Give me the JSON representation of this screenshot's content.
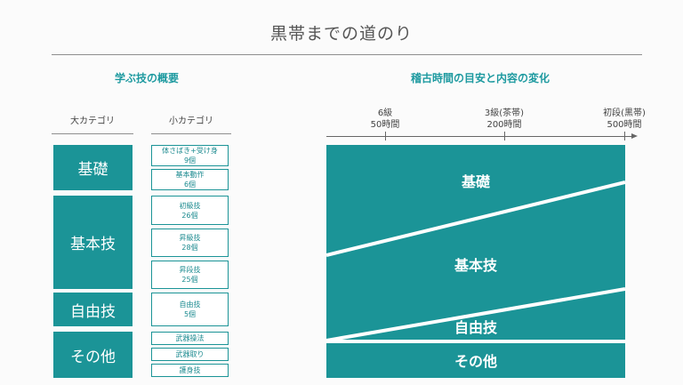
{
  "title": "黒帯までの道のり",
  "left_section": {
    "title": "学ぶ技の概要",
    "header_major": "大カテゴリ",
    "header_minor": "小カテゴリ",
    "groups": [
      {
        "label": "基礎",
        "items": [
          {
            "line1": "体さばき+受け身",
            "line2": "9個"
          },
          {
            "line1": "基本動作",
            "line2": "6個"
          }
        ]
      },
      {
        "label": "基本技",
        "items": [
          {
            "line1": "初級技",
            "line2": "26個"
          },
          {
            "line1": "昇級技",
            "line2": "28個"
          },
          {
            "line1": "昇段技",
            "line2": "25個"
          }
        ]
      },
      {
        "label": "自由技",
        "items": [
          {
            "line1": "自由技",
            "line2": "5個"
          }
        ]
      },
      {
        "label": "その他",
        "items": [
          {
            "line1": "武器操法",
            "line2": ""
          },
          {
            "line1": "武器取り",
            "line2": ""
          },
          {
            "line1": "護身技",
            "line2": ""
          }
        ]
      }
    ]
  },
  "right_section": {
    "title": "稽古時間の目安と内容の変化",
    "milestones": [
      {
        "rank": "6級",
        "hours": "50時間"
      },
      {
        "rank": "3級(茶帯)",
        "hours": "200時間"
      },
      {
        "rank": "初段(黒帯)",
        "hours": "500時間"
      }
    ],
    "bands": [
      "基礎",
      "基本技",
      "自由技",
      "その他"
    ],
    "colors": {
      "band": "#1b9497",
      "divider": "#ffffff",
      "accent": "#1e9aa0"
    }
  }
}
